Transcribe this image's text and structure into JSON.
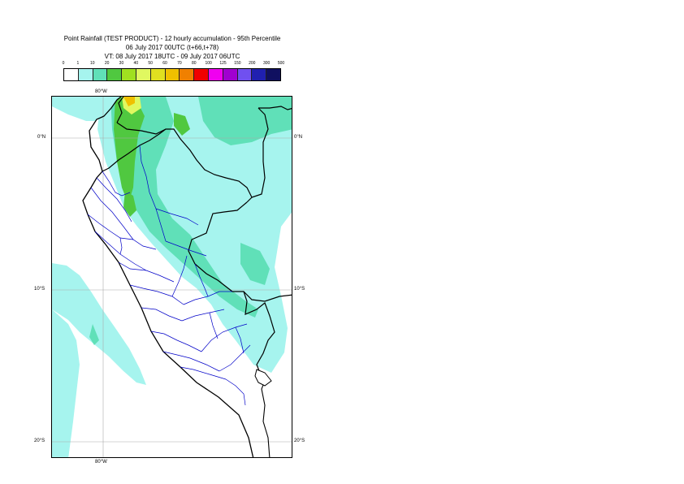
{
  "title": {
    "line1": "Point Rainfall (TEST PRODUCT) - 12 hourly accumulation - 95th Percentile",
    "line2": "06 July 2017 00UTC (t+66,t+78)",
    "line3": "VT: 08 July 2017 18UTC - 09 July 2017 06UTC"
  },
  "legend": {
    "ticks": [
      "0",
      "1",
      "10",
      "20",
      "30",
      "40",
      "50",
      "60",
      "70",
      "80",
      "100",
      "125",
      "150",
      "200",
      "300",
      "500"
    ],
    "colors": [
      "#ffffff",
      "#a6f4ee",
      "#60e0b8",
      "#50c840",
      "#a0e020",
      "#e0f860",
      "#e0e020",
      "#f0c000",
      "#f08000",
      "#f00000",
      "#f000f0",
      "#a000d0",
      "#7050f0",
      "#2020b0",
      "#101060"
    ]
  },
  "map": {
    "lon_label_top": "80°W",
    "lon_label_bottom": "80°W",
    "lat_labels": [
      "0°N",
      "10°S",
      "20°S"
    ],
    "colors": {
      "light_rain": "#a6f4ee",
      "moderate_rain": "#60e0b8",
      "heavy_rain": "#50c840",
      "intense_rain": "#e0f860",
      "very_intense_rain": "#f0c000",
      "country_border": "#000000",
      "region_border": "#0000c8",
      "graticule": "#aaaaaa"
    }
  }
}
